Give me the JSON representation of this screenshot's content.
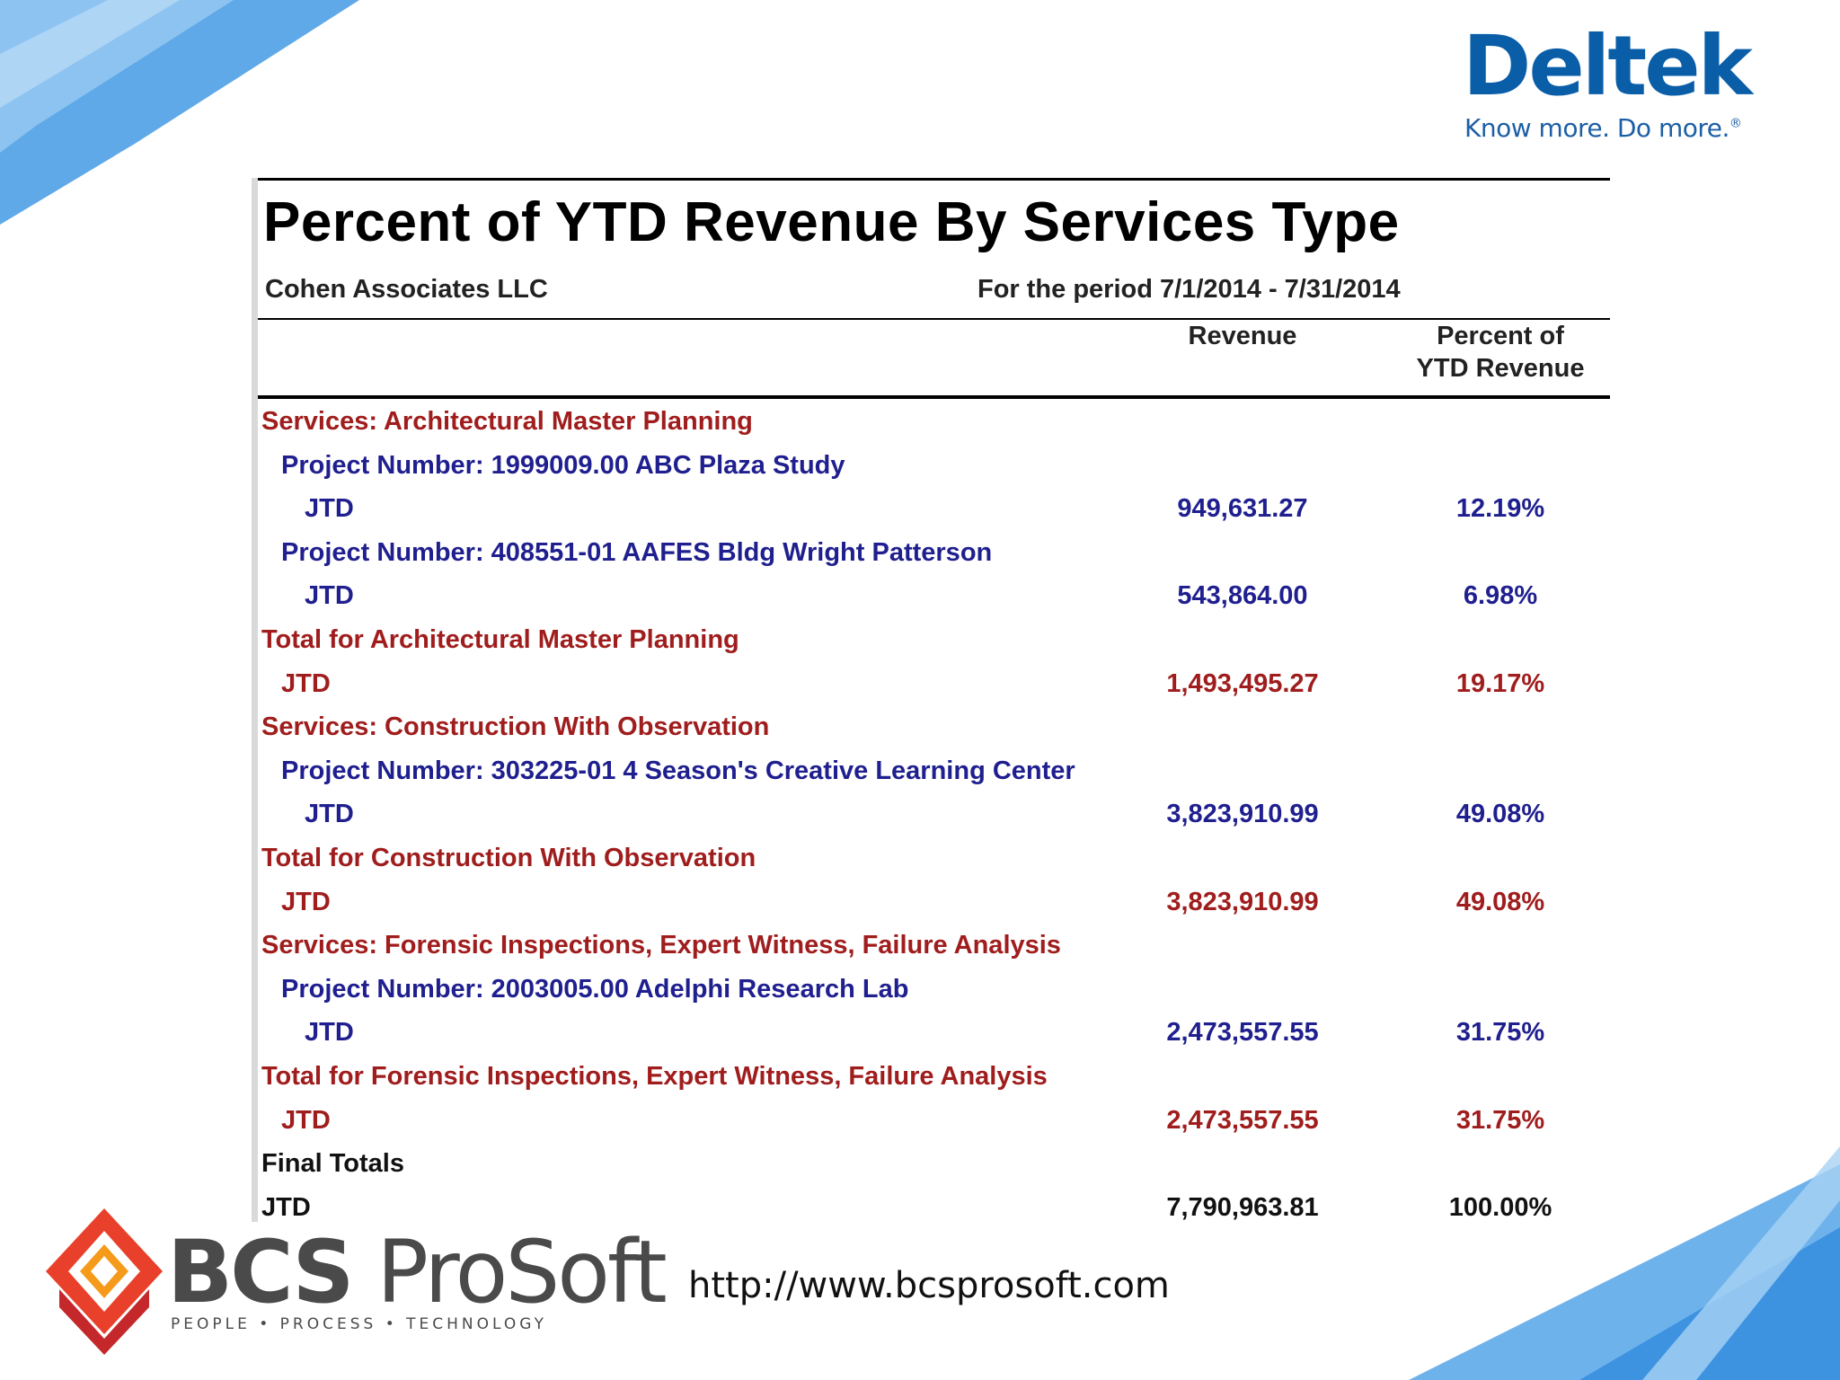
{
  "brand": {
    "deltek_name": "Deltek",
    "deltek_tagline": "Know more. Do more.",
    "deltek_registered": "®",
    "deltek_color": "#0a5ea8",
    "bcs_name_bold": "BCS",
    "bcs_name_rest": " ProSoft",
    "bcs_tagline": "PEOPLE • PROCESS • TECHNOLOGY",
    "website": "http://www.bcsprosoft.com"
  },
  "report": {
    "title": "Percent of YTD Revenue By Services Type",
    "company": "Cohen Associates LLC",
    "period": "For the period 7/1/2014 - 7/31/2014",
    "col_revenue": "Revenue",
    "col_percent_line1": "Percent of",
    "col_percent_line2": "YTD Revenue",
    "rows": [
      {
        "label": "Services: Architectural Master Planning",
        "revenue": "",
        "percent": ""
      },
      {
        "label": "Project Number: 1999009.00 ABC Plaza Study",
        "revenue": "",
        "percent": ""
      },
      {
        "label": "JTD",
        "revenue": "949,631.27",
        "percent": "12.19%"
      },
      {
        "label": "Project Number: 408551-01 AAFES Bldg Wright Patterson",
        "revenue": "",
        "percent": ""
      },
      {
        "label": "JTD",
        "revenue": "543,864.00",
        "percent": "6.98%"
      },
      {
        "label": "Total for Architectural Master Planning",
        "revenue": "",
        "percent": ""
      },
      {
        "label": "JTD",
        "revenue": "1,493,495.27",
        "percent": "19.17%"
      },
      {
        "label": "Services: Construction With Observation",
        "revenue": "",
        "percent": ""
      },
      {
        "label": "Project Number: 303225-01 4 Season's Creative Learning Center",
        "revenue": "",
        "percent": ""
      },
      {
        "label": "JTD",
        "revenue": "3,823,910.99",
        "percent": "49.08%"
      },
      {
        "label": "Total for Construction With Observation",
        "revenue": "",
        "percent": ""
      },
      {
        "label": "JTD",
        "revenue": "3,823,910.99",
        "percent": "49.08%"
      },
      {
        "label": "Services: Forensic Inspections, Expert Witness, Failure Analysis",
        "revenue": "",
        "percent": ""
      },
      {
        "label": "Project Number: 2003005.00 Adelphi Research Lab",
        "revenue": "",
        "percent": ""
      },
      {
        "label": "JTD",
        "revenue": "2,473,557.55",
        "percent": "31.75%"
      },
      {
        "label": "Total for Forensic Inspections, Expert Witness, Failure Analysis",
        "revenue": "",
        "percent": ""
      },
      {
        "label": "JTD",
        "revenue": "2,473,557.55",
        "percent": "31.75%"
      },
      {
        "label": "Final Totals",
        "revenue": "",
        "percent": ""
      },
      {
        "label": "JTD",
        "revenue": "7,790,963.81",
        "percent": "100.00%"
      }
    ]
  },
  "colors": {
    "service_red": "#a01d1d",
    "project_blue": "#1f1f8f",
    "accent_blue": "#1e88e5"
  }
}
